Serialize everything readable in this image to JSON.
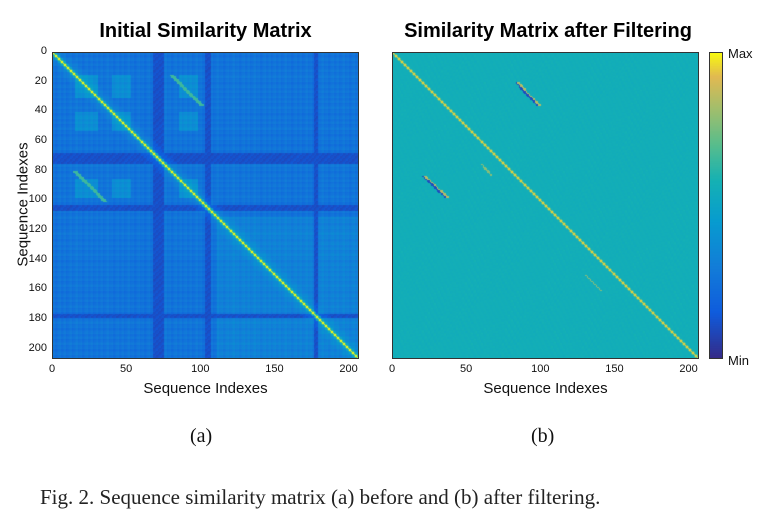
{
  "figure": {
    "sub_a": "(a)",
    "sub_b": "(b)",
    "caption": "Fig. 2.    Sequence similarity matrix (a) before and (b) after filtering."
  },
  "colorbar": {
    "max_label": "Max",
    "min_label": "Min"
  },
  "chart_data": [
    {
      "type": "heatmap",
      "title": "Initial Similarity Matrix",
      "xlabel": "Sequence Indexes",
      "ylabel": "Sequence Indexes",
      "n": 207,
      "xlim": [
        0,
        207
      ],
      "ylim": [
        0,
        207
      ],
      "xticks": [
        0,
        50,
        100,
        150,
        200
      ],
      "yticks": [
        0,
        20,
        40,
        60,
        80,
        100,
        120,
        140,
        160,
        180,
        200
      ],
      "y_direction": "reversed",
      "colormap": "parula",
      "features": {
        "diagonal": "max",
        "low_similarity_bands": [
          [
            70,
            74
          ],
          [
            103,
            106
          ],
          [
            68,
            70
          ],
          [
            176,
            178
          ]
        ],
        "repeated_blocks": [
          [
            15,
            30
          ],
          [
            40,
            52
          ],
          [
            85,
            97
          ]
        ],
        "off_diagonal_streaks": [
          [
            20,
            85
          ],
          [
            85,
            20
          ]
        ]
      }
    },
    {
      "type": "heatmap",
      "title": "Similarity Matrix after Filtering",
      "xlabel": "Sequence Indexes",
      "ylabel": "",
      "n": 207,
      "xlim": [
        0,
        207
      ],
      "ylim": [
        0,
        207
      ],
      "xticks": [
        0,
        50,
        100,
        150,
        200
      ],
      "y_direction": "reversed",
      "colormap": "parula",
      "features": {
        "diagonal": "max",
        "background": "mid",
        "off_diagonal_streaks": [
          {
            "start": [
              83,
              20
            ],
            "end": [
              97,
              35
            ]
          },
          {
            "start": [
              20,
              83
            ],
            "end": [
              35,
              97
            ]
          },
          {
            "start": [
              75,
              60
            ],
            "end": [
              82,
              66
            ]
          },
          {
            "start": [
              150,
              130
            ],
            "end": [
              160,
              140
            ]
          }
        ]
      }
    }
  ]
}
